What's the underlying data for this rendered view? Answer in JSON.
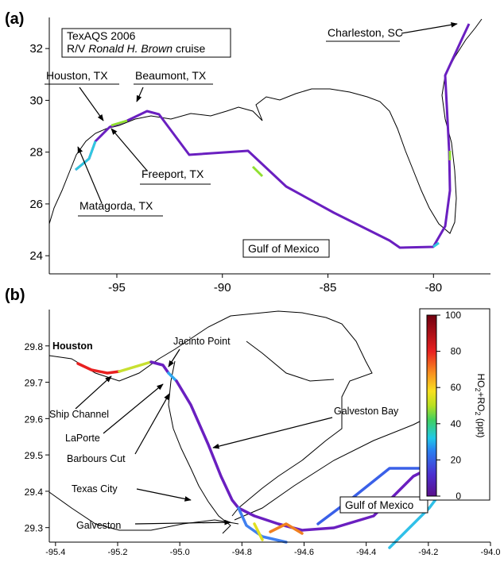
{
  "panels": [
    {
      "label": "(a)",
      "xlim": [
        -98.2,
        -77.3
      ],
      "ylim": [
        23.3,
        33.2
      ],
      "xticks": [
        -95,
        -90,
        -85,
        -80
      ],
      "yticks": [
        24,
        26,
        28,
        30,
        32
      ],
      "box_title": "TexAQS 2006",
      "box_ship_prefix": "R/V",
      "box_ship_name": "Ronald H. Brown",
      "box_ship_suffix": "cruise",
      "annotations": [
        "Charleston, SC",
        "Houston, TX",
        "Beaumont, TX",
        "Freeport, TX",
        "Matagorda, TX",
        "Gulf of Mexico"
      ]
    },
    {
      "label": "(b)",
      "xlim": [
        -95.42,
        -94.0
      ],
      "ylim": [
        29.26,
        29.9
      ],
      "xticks": [
        -95.4,
        -95.2,
        {
          "value": -95,
          "label": "-95.0"
        },
        -94.8,
        -94.6,
        -94.4,
        -94.2,
        {
          "value": -94,
          "label": "-94.0"
        }
      ],
      "yticks": [
        29.3,
        29.4,
        29.5,
        29.6,
        29.7,
        29.8
      ],
      "annotations": [
        "Houston",
        "Jacinto Point",
        "Ship Channel",
        "LaPorte",
        "Barbours Cut",
        "Galveston Bay",
        "Texas City",
        "Galveston",
        "Gulf of Mexico"
      ]
    }
  ],
  "colorbar": {
    "label_parts": [
      "HO",
      "2",
      "+RO",
      "2",
      " (ppt)"
    ],
    "lim": [
      0,
      100
    ],
    "ticks": [
      0,
      20,
      40,
      60,
      80,
      100
    ]
  }
}
